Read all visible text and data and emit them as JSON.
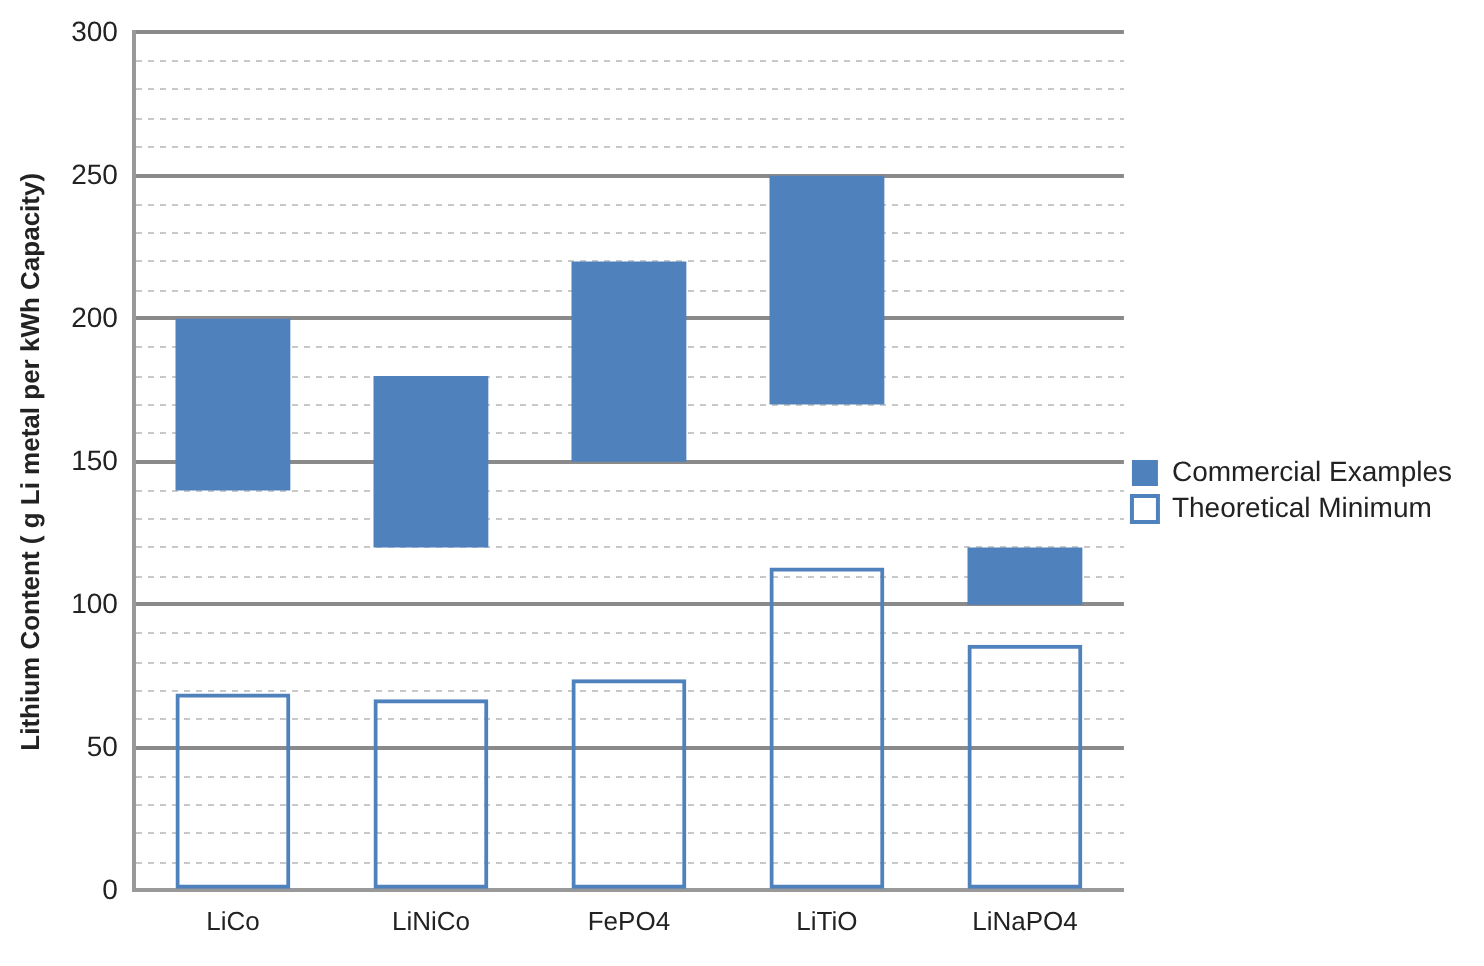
{
  "chart_data": {
    "type": "bar",
    "ylabel": "Lithium Content ( g Li metal per kWh Capacity)",
    "categories": [
      "LiCo",
      "LiNiCo",
      "FePO4",
      "LiTiO",
      "LiNaPO4"
    ],
    "series": [
      {
        "name": "Commercial Examples",
        "color": "#4f81bd",
        "base": [
          140,
          120,
          150,
          170,
          100
        ],
        "values": [
          60,
          60,
          70,
          80,
          20
        ]
      },
      {
        "name": "Theoretical Minimum",
        "color": "#4f81bd",
        "values": [
          69,
          67,
          74,
          113,
          86
        ]
      }
    ],
    "ylim": [
      0,
      300
    ],
    "yticks": [
      0,
      {
        "value": 10,
        "label": null
      },
      {
        "value": 20,
        "label": null
      },
      {
        "value": 30,
        "label": null
      },
      {
        "value": 40,
        "label": null
      },
      50,
      {
        "value": 60,
        "label": null
      },
      {
        "value": 70,
        "label": null
      },
      {
        "value": 80,
        "label": null
      },
      {
        "value": 90,
        "label": null
      },
      100,
      {
        "value": 110,
        "label": null
      },
      {
        "value": 120,
        "label": null
      },
      {
        "value": 130,
        "label": null
      },
      {
        "value": 140,
        "label": null
      },
      150,
      {
        "value": 160,
        "label": null
      },
      {
        "value": 170,
        "label": null
      },
      {
        "value": 180,
        "label": null
      },
      {
        "value": 190,
        "label": null
      },
      200,
      {
        "value": 210,
        "label": null
      },
      {
        "value": 220,
        "label": null
      },
      {
        "value": 230,
        "label": null
      },
      {
        "value": 240,
        "label": null
      },
      250,
      {
        "value": 260,
        "label": null
      },
      {
        "value": 270,
        "label": null
      },
      {
        "value": 280,
        "label": null
      },
      {
        "value": 290,
        "label": null
      },
      300
    ],
    "grid": "y",
    "legend": "right"
  }
}
